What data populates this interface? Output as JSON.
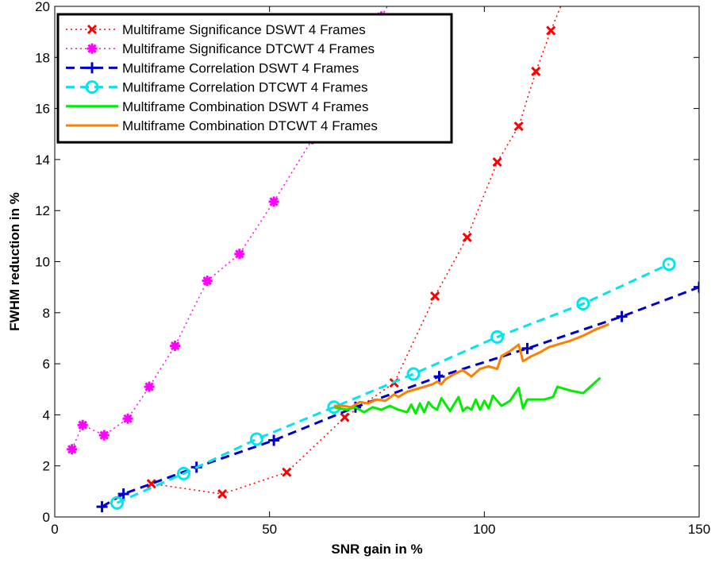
{
  "chart_data": {
    "type": "line",
    "xlabel": "SNR gain in %",
    "ylabel": "FWHM reduction in %",
    "xlim": [
      0,
      150
    ],
    "ylim": [
      0,
      20
    ],
    "xticks": [
      0,
      50,
      100,
      150
    ],
    "yticks": [
      0,
      2,
      4,
      6,
      8,
      10,
      12,
      14,
      16,
      18,
      20
    ],
    "grid": false,
    "legend_position": "top-left",
    "series": [
      {
        "name": "Multiframe Significance DSWT 4 Frames",
        "color": "#ff0000",
        "line_style": "dotted",
        "marker": "x",
        "marker_color": "#ff0000",
        "points": [
          [
            22.5,
            1.3
          ],
          [
            39,
            0.9
          ],
          [
            54,
            1.75
          ],
          [
            67.5,
            3.9
          ],
          [
            79,
            5.25
          ],
          [
            88.5,
            8.65
          ],
          [
            96,
            10.95
          ],
          [
            103,
            13.9
          ],
          [
            108,
            15.3
          ],
          [
            112,
            17.45
          ],
          [
            115.5,
            19.05
          ],
          [
            118.5,
            20.3
          ]
        ]
      },
      {
        "name": "Multiframe Significance DTCWT 4 Frames",
        "color": "#ff00ff",
        "line_style": "dotted",
        "marker": "*",
        "marker_color": "#ff00ff",
        "points": [
          [
            4,
            2.65
          ],
          [
            6.5,
            3.6
          ],
          [
            11.5,
            3.2
          ],
          [
            17,
            3.85
          ],
          [
            22,
            5.1
          ],
          [
            28,
            6.7
          ],
          [
            35.5,
            9.25
          ],
          [
            43,
            10.3
          ],
          [
            51,
            12.35
          ],
          [
            60,
            14.8
          ],
          [
            68,
            17.2
          ],
          [
            76,
            19.6
          ],
          [
            81,
            21.0
          ]
        ]
      },
      {
        "name": "Multiframe Correlation DSWT 4 Frames",
        "color": "#0000cc",
        "line_style": "dashed",
        "marker": "+",
        "marker_color": "#0000cc",
        "points": [
          [
            11,
            0.4
          ],
          [
            16,
            0.9
          ],
          [
            33,
            1.95
          ],
          [
            51,
            3.0
          ],
          [
            70,
            4.3
          ],
          [
            89.5,
            5.5
          ],
          [
            110,
            6.6
          ],
          [
            132,
            7.85
          ],
          [
            150,
            9.0
          ]
        ]
      },
      {
        "name": "Multiframe Correlation DTCWT 4 Frames",
        "color": "#00e5ee",
        "line_style": "dashed",
        "marker": "o",
        "marker_color": "#00e5ee",
        "points": [
          [
            14.5,
            0.55
          ],
          [
            30,
            1.7
          ],
          [
            47,
            3.05
          ],
          [
            65,
            4.3
          ],
          [
            83.5,
            5.6
          ],
          [
            103,
            7.05
          ],
          [
            123,
            8.35
          ],
          [
            143,
            9.9
          ]
        ]
      },
      {
        "name": "Multiframe Combination DSWT 4 Frames",
        "color": "#00ee00",
        "line_style": "solid",
        "marker": "none",
        "marker_color": "#00ee00",
        "points": [
          [
            65,
            4.3
          ],
          [
            68,
            4.2
          ],
          [
            70,
            4.3
          ],
          [
            72,
            4.1
          ],
          [
            74,
            4.3
          ],
          [
            76,
            4.2
          ],
          [
            78,
            4.35
          ],
          [
            80,
            4.2
          ],
          [
            82,
            4.1
          ],
          [
            83,
            4.4
          ],
          [
            84,
            4.05
          ],
          [
            85,
            4.45
          ],
          [
            86,
            4.1
          ],
          [
            87,
            4.5
          ],
          [
            88,
            4.3
          ],
          [
            89,
            4.2
          ],
          [
            90,
            4.65
          ],
          [
            92,
            4.15
          ],
          [
            94,
            4.7
          ],
          [
            95,
            4.15
          ],
          [
            96,
            4.3
          ],
          [
            97,
            4.2
          ],
          [
            98,
            4.6
          ],
          [
            99,
            4.2
          ],
          [
            100,
            4.55
          ],
          [
            101,
            4.25
          ],
          [
            102,
            4.75
          ],
          [
            104,
            4.35
          ],
          [
            106,
            4.55
          ],
          [
            108,
            5.05
          ],
          [
            109,
            4.25
          ],
          [
            110,
            4.6
          ],
          [
            114,
            4.6
          ],
          [
            116,
            4.7
          ],
          [
            117,
            5.1
          ],
          [
            120,
            4.95
          ],
          [
            123,
            4.85
          ],
          [
            127,
            5.45
          ]
        ]
      },
      {
        "name": "Multiframe Combination DTCWT 4 Frames",
        "color": "#ff7f00",
        "line_style": "solid",
        "marker": "none",
        "marker_color": "#ff7f00",
        "points": [
          [
            65,
            4.35
          ],
          [
            67,
            4.35
          ],
          [
            69,
            4.3
          ],
          [
            71,
            4.5
          ],
          [
            73,
            4.45
          ],
          [
            75,
            4.6
          ],
          [
            77,
            4.55
          ],
          [
            79,
            4.8
          ],
          [
            80,
            4.7
          ],
          [
            82,
            4.9
          ],
          [
            84,
            5.0
          ],
          [
            86,
            5.1
          ],
          [
            88,
            5.2
          ],
          [
            89,
            5.3
          ],
          [
            90,
            5.2
          ],
          [
            91,
            5.4
          ],
          [
            93,
            5.6
          ],
          [
            95,
            5.75
          ],
          [
            97,
            5.5
          ],
          [
            99,
            5.8
          ],
          [
            101,
            5.9
          ],
          [
            103,
            5.8
          ],
          [
            104,
            6.3
          ],
          [
            106,
            6.5
          ],
          [
            108,
            6.75
          ],
          [
            109,
            6.1
          ],
          [
            111,
            6.3
          ],
          [
            113,
            6.45
          ],
          [
            115,
            6.65
          ],
          [
            117,
            6.75
          ],
          [
            120,
            6.9
          ],
          [
            123,
            7.1
          ],
          [
            126,
            7.35
          ],
          [
            129,
            7.55
          ]
        ]
      }
    ]
  }
}
